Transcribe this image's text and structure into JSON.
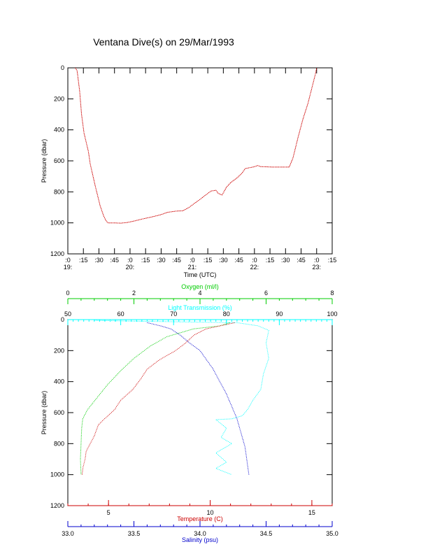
{
  "title": "Ventana Dive(s) on 29/Mar/1993",
  "chart_data": [
    {
      "type": "line",
      "xlabel": "Time (UTC)",
      "ylabel": "Pressure (dbar)",
      "x_unit": "hours UTC",
      "xlim": [
        19.0,
        23.25
      ],
      "ylim": [
        1200,
        0
      ],
      "x_ticks": [
        {
          "v": 19.0,
          "label": ":0",
          "hour": "19:"
        },
        {
          "v": 19.25,
          "label": ":15"
        },
        {
          "v": 19.5,
          "label": ":30"
        },
        {
          "v": 19.75,
          "label": ":45"
        },
        {
          "v": 20.0,
          "label": ":0",
          "hour": "20:"
        },
        {
          "v": 20.25,
          "label": ":15"
        },
        {
          "v": 20.5,
          "label": ":30"
        },
        {
          "v": 20.75,
          "label": ":45"
        },
        {
          "v": 21.0,
          "label": ":0",
          "hour": "21:"
        },
        {
          "v": 21.25,
          "label": ":15"
        },
        {
          "v": 21.5,
          "label": ":30"
        },
        {
          "v": 21.75,
          "label": ":45"
        },
        {
          "v": 22.0,
          "label": ":0",
          "hour": "22:"
        },
        {
          "v": 22.25,
          "label": ":15"
        },
        {
          "v": 22.5,
          "label": ":30"
        },
        {
          "v": 22.75,
          "label": ":45"
        },
        {
          "v": 23.0,
          "label": ":0",
          "hour": "23:"
        },
        {
          "v": 23.25,
          "label": ":15"
        }
      ],
      "y_ticks": [
        0,
        200,
        400,
        600,
        800,
        1000,
        1200
      ],
      "series": [
        {
          "color": "#cc0000",
          "points": [
            [
              19.12,
              0
            ],
            [
              19.15,
              20
            ],
            [
              19.19,
              150
            ],
            [
              19.22,
              300
            ],
            [
              19.26,
              420
            ],
            [
              19.33,
              540
            ],
            [
              19.36,
              620
            ],
            [
              19.44,
              760
            ],
            [
              19.52,
              890
            ],
            [
              19.58,
              960
            ],
            [
              19.62,
              990
            ],
            [
              19.65,
              1000
            ],
            [
              19.75,
              1000
            ],
            [
              19.85,
              1002
            ],
            [
              19.95,
              998
            ],
            [
              20.05,
              990
            ],
            [
              20.2,
              975
            ],
            [
              20.35,
              962
            ],
            [
              20.5,
              947
            ],
            [
              20.6,
              932
            ],
            [
              20.75,
              924
            ],
            [
              20.85,
              922
            ],
            [
              20.95,
              900
            ],
            [
              21.05,
              870
            ],
            [
              21.12,
              850
            ],
            [
              21.2,
              825
            ],
            [
              21.3,
              795
            ],
            [
              21.38,
              790
            ],
            [
              21.42,
              810
            ],
            [
              21.48,
              820
            ],
            [
              21.55,
              770
            ],
            [
              21.62,
              740
            ],
            [
              21.72,
              710
            ],
            [
              21.8,
              680
            ],
            [
              21.85,
              650
            ],
            [
              22.0,
              638
            ],
            [
              22.05,
              630
            ],
            [
              22.1,
              637
            ],
            [
              22.3,
              640
            ],
            [
              22.56,
              640
            ],
            [
              22.62,
              580
            ],
            [
              22.7,
              450
            ],
            [
              22.78,
              330
            ],
            [
              22.86,
              230
            ],
            [
              22.93,
              120
            ],
            [
              22.98,
              40
            ],
            [
              23.0,
              0
            ]
          ]
        }
      ]
    },
    {
      "type": "scatter",
      "ylabel": "Pressure (dbar)",
      "ylim": [
        1200,
        0
      ],
      "y_ticks": [
        0,
        200,
        400,
        600,
        800,
        1000,
        1200
      ],
      "axes": [
        {
          "label": "Oxygen (ml/l)",
          "color": "#00cc00",
          "position": "top-outer",
          "range": [
            0,
            8
          ],
          "ticks": [
            0,
            2,
            4,
            6,
            8
          ]
        },
        {
          "label": "Light Transmission (%)",
          "color": "#00ffff",
          "position": "top-inner",
          "range": [
            50,
            100
          ],
          "ticks": [
            50,
            60,
            70,
            80,
            90,
            100
          ]
        },
        {
          "label": "Temperature (C)",
          "color": "#cc0000",
          "position": "bottom-inner",
          "range": [
            3.0,
            16.0
          ],
          "ticks": [
            5,
            10,
            15
          ]
        },
        {
          "label": "Salinity (psu)",
          "color": "#0000cc",
          "position": "bottom-outer",
          "range": [
            33.0,
            35.0
          ],
          "ticks": [
            33.0,
            33.5,
            34.0,
            34.5,
            35.0
          ]
        }
      ],
      "series": [
        {
          "variable": "oxygen",
          "color": "#00cc00",
          "points": [
            [
              4.9,
              20
            ],
            [
              4.6,
              40
            ],
            [
              3.8,
              60
            ],
            [
              3.0,
              110
            ],
            [
              2.5,
              170
            ],
            [
              2.0,
              250
            ],
            [
              1.6,
              330
            ],
            [
              1.2,
              420
            ],
            [
              0.9,
              500
            ],
            [
              0.6,
              580
            ],
            [
              0.45,
              640
            ],
            [
              0.42,
              700
            ],
            [
              0.4,
              800
            ],
            [
              0.38,
              900
            ],
            [
              0.4,
              1000
            ]
          ]
        },
        {
          "variable": "transmission",
          "color": "#00ffff",
          "points": [
            [
              55,
              5
            ],
            [
              62,
              10
            ],
            [
              72,
              15
            ],
            [
              82,
              20
            ],
            [
              86,
              40
            ],
            [
              88,
              70
            ],
            [
              87.5,
              150
            ],
            [
              88,
              250
            ],
            [
              87,
              350
            ],
            [
              86.5,
              450
            ],
            [
              85,
              520
            ],
            [
              84,
              580
            ],
            [
              83,
              620
            ],
            [
              81,
              640
            ],
            [
              78,
              645
            ],
            [
              80,
              700
            ],
            [
              79,
              760
            ],
            [
              81,
              800
            ],
            [
              78,
              860
            ],
            [
              80,
              920
            ],
            [
              78,
              960
            ],
            [
              81,
              1000
            ]
          ]
        },
        {
          "variable": "temperature",
          "color": "#cc0000",
          "points": [
            [
              11.2,
              20
            ],
            [
              10.5,
              40
            ],
            [
              9.8,
              60
            ],
            [
              9.2,
              100
            ],
            [
              8.8,
              150
            ],
            [
              8.3,
              200
            ],
            [
              7.5,
              260
            ],
            [
              6.9,
              320
            ],
            [
              6.6,
              380
            ],
            [
              6.2,
              450
            ],
            [
              5.6,
              520
            ],
            [
              5.3,
              580
            ],
            [
              4.9,
              630
            ],
            [
              4.8,
              640
            ],
            [
              4.5,
              680
            ],
            [
              4.3,
              750
            ],
            [
              4.1,
              800
            ],
            [
              3.9,
              850
            ],
            [
              3.85,
              900
            ],
            [
              3.75,
              950
            ],
            [
              3.7,
              1000
            ]
          ]
        },
        {
          "variable": "salinity",
          "color": "#0000cc",
          "points": [
            [
              33.6,
              20
            ],
            [
              33.7,
              40
            ],
            [
              33.78,
              60
            ],
            [
              33.85,
              100
            ],
            [
              33.92,
              150
            ],
            [
              34.0,
              200
            ],
            [
              34.05,
              260
            ],
            [
              34.1,
              320
            ],
            [
              34.15,
              400
            ],
            [
              34.2,
              480
            ],
            [
              34.24,
              560
            ],
            [
              34.27,
              620
            ],
            [
              34.28,
              640
            ],
            [
              34.3,
              700
            ],
            [
              34.32,
              760
            ],
            [
              34.34,
              820
            ],
            [
              34.35,
              880
            ],
            [
              34.36,
              940
            ],
            [
              34.37,
              1000
            ]
          ]
        }
      ]
    }
  ]
}
